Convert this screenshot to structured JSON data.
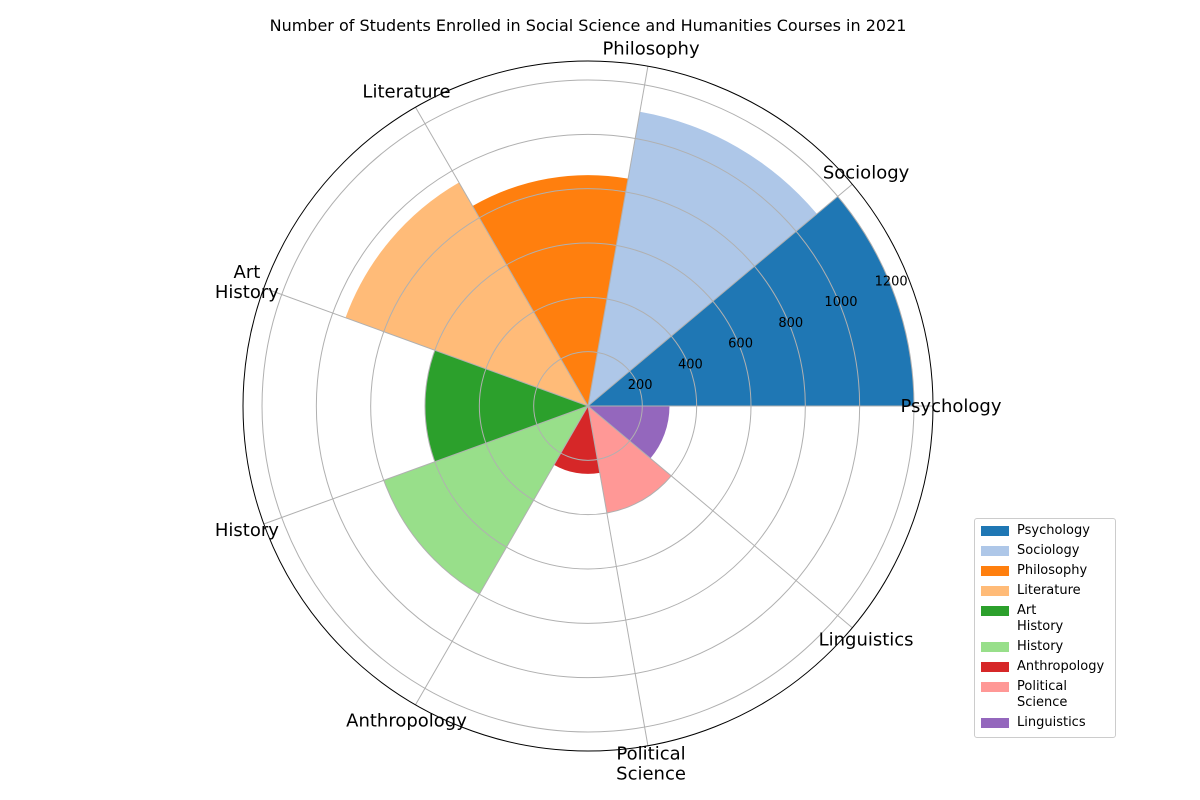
{
  "chart_data": {
    "type": "polar-bar",
    "title": "Number of Students Enrolled in Social Science and Humanities Courses in 2021",
    "categories": [
      "Psychology",
      "Sociology",
      "Philosophy",
      "Literature",
      "Art\nHistory",
      "History",
      "Anthropology",
      "Political\nScience",
      "Linguistics"
    ],
    "values": [
      1200,
      1100,
      850,
      950,
      600,
      800,
      250,
      400,
      300
    ],
    "colors": [
      "#1f77b4",
      "#aec7e8",
      "#ff7f0e",
      "#ffbb78",
      "#2ca02c",
      "#98df8a",
      "#d62728",
      "#ff9896",
      "#9467bd"
    ],
    "rlim": [
      0,
      1270
    ],
    "r_ticks": [
      200,
      400,
      600,
      800,
      1000,
      1200
    ],
    "r_tick_labels": [
      "200",
      "400",
      "600",
      "800",
      "1000",
      "1200"
    ],
    "grid": true,
    "legend_position": "lower-right",
    "legend": [
      "Psychology",
      "Sociology",
      "Philosophy",
      "Literature",
      "Art\nHistory",
      "History",
      "Anthropology",
      "Political\nScience",
      "Linguistics"
    ]
  }
}
